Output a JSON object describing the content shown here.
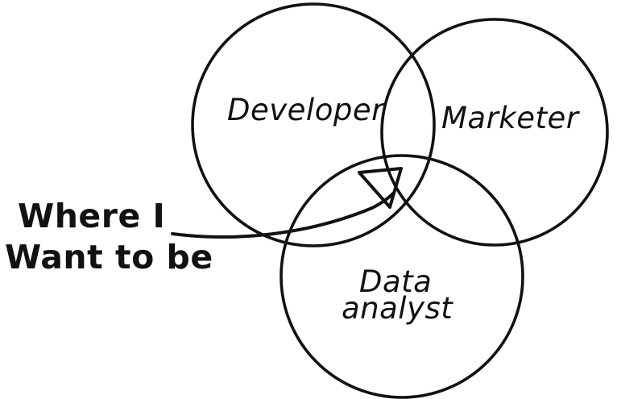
{
  "sets": [
    {
      "id": "developer",
      "label": "Developer"
    },
    {
      "id": "marketer",
      "label": "Marketer"
    },
    {
      "id": "data-analyst",
      "label_lines": [
        "Data",
        "analyst"
      ]
    }
  ],
  "annotation": {
    "lines": [
      "Where I",
      "Want to be"
    ],
    "points_to": "intersection of Developer, Marketer and Data analyst"
  },
  "colors": {
    "ink": "#111111",
    "background": "#ffffff"
  }
}
